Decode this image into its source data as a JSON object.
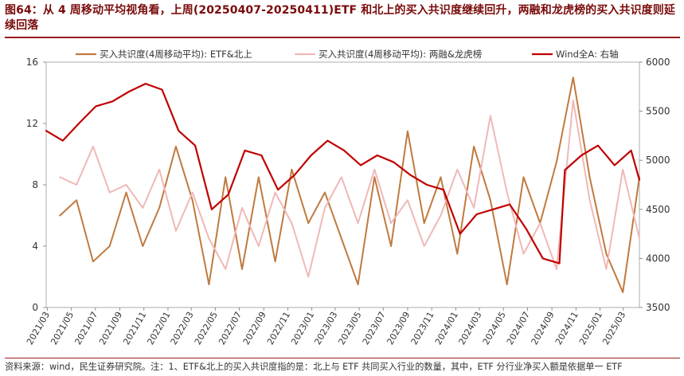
{
  "title": "图64：从 4 周移动平均视角看，上周(20250407-20250411)ETF 和北上的买入共识度继续回升，两融和龙虎榜的买入共识度则延续回落",
  "footnote": "资料来源：wind，民生证券研究院。注：1、ETF&北上的买入共识度指的是：北上与 ETF 共同买入行业的数量，其中，ETF 分行业净买入额是依据单一 ETF",
  "colors": {
    "etf": "#c07a3e",
    "margin": "#f0b8b8",
    "wind": "#c00000",
    "accent": "#9b1c1c"
  },
  "chart_data": {
    "type": "line",
    "title": "",
    "xlabel": "",
    "ylabel": "",
    "x_range": [
      "2021-02-26",
      "2025-04-11"
    ],
    "y_left": {
      "lim": [
        0,
        16
      ],
      "ticks": [
        "0",
        "4",
        "8",
        "12",
        "16"
      ]
    },
    "y_right": {
      "lim": [
        3500,
        6000
      ],
      "ticks": [
        "3500",
        "4000",
        "4500",
        "5000",
        "5500",
        "6000"
      ],
      "label": "右轴"
    },
    "x_ticks": [
      "2021/03",
      "2021/05",
      "2021/07",
      "2021/09",
      "2021/11",
      "2022/01",
      "2022/03",
      "2022/05",
      "2022/07",
      "2022/09",
      "2022/11",
      "2023/01",
      "2023/03",
      "2023/05",
      "2023/07",
      "2023/09",
      "2023/11",
      "2024/01",
      "2024/03",
      "2024/05",
      "2024/07",
      "2024/09",
      "2024/11",
      "2025/01",
      "2025/03"
    ],
    "legend_position": "top",
    "series": [
      {
        "name": "买入共识度(4周移动平均): ETF&北上",
        "axis": "left",
        "x": [
          "2021-04-02",
          "2021-05-14",
          "2021-06-25",
          "2021-08-06",
          "2021-09-17",
          "2021-10-29",
          "2021-12-10",
          "2022-01-21",
          "2022-03-04",
          "2022-04-15",
          "2022-05-27",
          "2022-07-08",
          "2022-08-19",
          "2022-09-30",
          "2022-11-11",
          "2022-12-23",
          "2023-02-03",
          "2023-03-17",
          "2023-04-28",
          "2023-06-09",
          "2023-07-21",
          "2023-09-01",
          "2023-10-13",
          "2023-11-24",
          "2024-01-05",
          "2024-02-16",
          "2024-03-29",
          "2024-05-10",
          "2024-06-21",
          "2024-08-02",
          "2024-09-13",
          "2024-10-25",
          "2024-12-06",
          "2025-01-17",
          "2025-02-28",
          "2025-04-11"
        ],
        "y": [
          6.0,
          7.0,
          3.0,
          4.0,
          7.5,
          4.0,
          6.5,
          10.5,
          7.0,
          1.5,
          8.5,
          2.5,
          8.5,
          3.0,
          9.0,
          5.5,
          7.5,
          4.5,
          1.5,
          8.5,
          4.0,
          11.5,
          5.5,
          8.5,
          3.5,
          10.5,
          7.0,
          1.5,
          8.5,
          5.5,
          9.5,
          15.0,
          8.5,
          3.5,
          1.0,
          8.5
        ]
      },
      {
        "name": "买入共识度(4周移动平均): 两融&龙虎榜",
        "axis": "left",
        "x": [
          "2021-04-02",
          "2021-05-14",
          "2021-06-25",
          "2021-08-06",
          "2021-09-17",
          "2021-10-29",
          "2021-12-10",
          "2022-01-21",
          "2022-03-04",
          "2022-04-15",
          "2022-05-27",
          "2022-07-08",
          "2022-08-19",
          "2022-09-30",
          "2022-11-11",
          "2022-12-23",
          "2023-02-03",
          "2023-03-17",
          "2023-04-28",
          "2023-06-09",
          "2023-07-21",
          "2023-09-01",
          "2023-10-13",
          "2023-11-24",
          "2024-01-05",
          "2024-02-16",
          "2024-03-29",
          "2024-05-10",
          "2024-06-21",
          "2024-08-02",
          "2024-09-13",
          "2024-10-25",
          "2024-12-06",
          "2025-01-17",
          "2025-02-28",
          "2025-04-11"
        ],
        "y": [
          8.5,
          8.0,
          10.5,
          7.5,
          8.0,
          6.5,
          9.0,
          5.0,
          7.5,
          4.5,
          2.5,
          6.5,
          4.0,
          7.5,
          5.5,
          2.0,
          6.5,
          8.5,
          5.5,
          9.0,
          5.5,
          7.0,
          4.0,
          6.0,
          9.0,
          6.5,
          12.5,
          7.5,
          3.5,
          5.5,
          2.5,
          13.5,
          7.0,
          2.5,
          9.0,
          4.5
        ]
      },
      {
        "name": "Wind全A: 右轴",
        "axis": "right",
        "x": [
          "2021-02-26",
          "2021-04-09",
          "2021-05-21",
          "2021-07-02",
          "2021-08-13",
          "2021-09-24",
          "2021-11-05",
          "2021-12-17",
          "2022-01-28",
          "2022-03-11",
          "2022-04-22",
          "2022-06-03",
          "2022-07-15",
          "2022-08-26",
          "2022-10-07",
          "2022-11-18",
          "2022-12-30",
          "2023-02-10",
          "2023-03-24",
          "2023-05-05",
          "2023-06-16",
          "2023-07-28",
          "2023-09-08",
          "2023-10-20",
          "2023-12-01",
          "2024-01-12",
          "2024-02-23",
          "2024-04-05",
          "2024-05-17",
          "2024-06-28",
          "2024-08-09",
          "2024-09-20",
          "2024-10-04",
          "2024-11-15",
          "2024-12-27",
          "2025-02-07",
          "2025-03-21",
          "2025-04-11"
        ],
        "y": [
          5300,
          5200,
          5380,
          5550,
          5600,
          5700,
          5780,
          5720,
          5300,
          5150,
          4500,
          4650,
          5100,
          5050,
          4700,
          4850,
          5050,
          5200,
          5100,
          4950,
          5050,
          4980,
          4850,
          4750,
          4700,
          4250,
          4450,
          4500,
          4550,
          4300,
          4000,
          3950,
          4900,
          5050,
          5150,
          4950,
          5100,
          4800
        ]
      }
    ]
  }
}
